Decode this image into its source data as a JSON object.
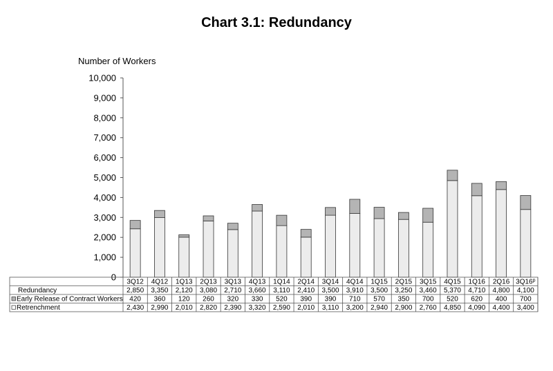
{
  "title": "Chart 3.1: Redundancy",
  "chart_data": {
    "type": "bar",
    "stacked": true,
    "title": "Chart 3.1: Redundancy",
    "ylabel": "Number of Workers",
    "xlabel": "",
    "ylim": [
      0,
      10000
    ],
    "yticks": [
      0,
      1000,
      2000,
      3000,
      4000,
      5000,
      6000,
      7000,
      8000,
      9000,
      10000
    ],
    "ytick_labels": [
      "0",
      "1,000",
      "2,000",
      "3,000",
      "4,000",
      "5,000",
      "6,000",
      "7,000",
      "8,000",
      "9,000",
      "10,000"
    ],
    "categories": [
      "3Q12",
      "4Q12",
      "1Q13",
      "2Q13",
      "3Q13",
      "4Q13",
      "1Q14",
      "2Q14",
      "3Q14",
      "4Q14",
      "1Q15",
      "2Q15",
      "3Q15",
      "4Q15",
      "1Q16",
      "2Q16",
      "3Q16"
    ],
    "category_superscripts": [
      "",
      "",
      "",
      "",
      "",
      "",
      "",
      "",
      "",
      "",
      "",
      "",
      "",
      "",
      "",
      "",
      "p"
    ],
    "grid": false,
    "series": [
      {
        "name": "Retrenchment",
        "color": "#ececec",
        "values": [
          2430,
          2990,
          2010,
          2820,
          2390,
          3320,
          2590,
          2010,
          3110,
          3200,
          2940,
          2900,
          2760,
          4850,
          4090,
          4400,
          3400
        ],
        "labels": [
          "2,430",
          "2,990",
          "2,010",
          "2,820",
          "2,390",
          "3,320",
          "2,590",
          "2,010",
          "3,110",
          "3,200",
          "2,940",
          "2,900",
          "2,760",
          "4,850",
          "4,090",
          "4,400",
          "3,400"
        ]
      },
      {
        "name": "Early Release of Contract Workers",
        "color": "#b4b4b4",
        "values": [
          420,
          360,
          120,
          260,
          320,
          330,
          520,
          390,
          390,
          710,
          570,
          350,
          700,
          520,
          620,
          400,
          700
        ],
        "labels": [
          "420",
          "360",
          "120",
          "260",
          "320",
          "330",
          "520",
          "390",
          "390",
          "710",
          "570",
          "350",
          "700",
          "520",
          "620",
          "400",
          "700"
        ]
      }
    ],
    "table": {
      "rows": [
        {
          "label": "Redundancy",
          "values": [
            "2,850",
            "3,350",
            "2,120",
            "3,080",
            "2,710",
            "3,660",
            "3,110",
            "2,410",
            "3,500",
            "3,910",
            "3,500",
            "3,250",
            "3,460",
            "5,370",
            "4,710",
            "4,800",
            "4,100"
          ]
        },
        {
          "label": "Early Release of Contract Workers",
          "values": [
            "420",
            "360",
            "120",
            "260",
            "320",
            "330",
            "520",
            "390",
            "390",
            "710",
            "570",
            "350",
            "700",
            "520",
            "620",
            "400",
            "700"
          ]
        },
        {
          "label": "Retrenchment",
          "values": [
            "2,430",
            "2,990",
            "2,010",
            "2,820",
            "2,390",
            "3,320",
            "2,590",
            "2,010",
            "3,110",
            "3,200",
            "2,940",
            "2,900",
            "2,760",
            "4,850",
            "4,090",
            "4,400",
            "3,400"
          ]
        }
      ]
    }
  },
  "colors": {
    "retrenchment": "#ececec",
    "early_release": "#b4b4b4",
    "border": "#333333"
  }
}
